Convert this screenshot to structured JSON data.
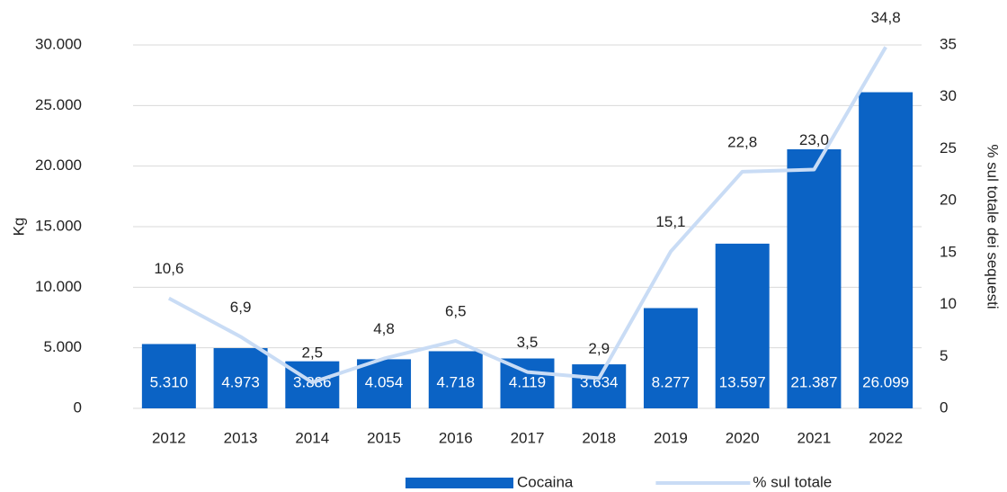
{
  "chart_data": {
    "type": "bar_line",
    "categories": [
      "2012",
      "2013",
      "2014",
      "2015",
      "2016",
      "2017",
      "2018",
      "2019",
      "2020",
      "2021",
      "2022"
    ],
    "series": [
      {
        "name": "Cocaina",
        "type": "bar",
        "color": "#0b63c5",
        "values": [
          5310,
          4973,
          3886,
          4054,
          4718,
          4119,
          3634,
          8277,
          13597,
          21387,
          26099
        ],
        "value_labels": [
          "5.310",
          "4.973",
          "3.886",
          "4.054",
          "4.718",
          "4.119",
          "3.634",
          "8.277",
          "13.597",
          "21.387",
          "26.099"
        ]
      },
      {
        "name": "% sul totale",
        "type": "line",
        "axis": "y2",
        "color": "#c9dcf5",
        "values": [
          10.6,
          6.9,
          2.5,
          4.8,
          6.5,
          3.5,
          2.9,
          15.1,
          22.8,
          23.0,
          34.8
        ],
        "value_labels": [
          "10,6",
          "6,9",
          "2,5",
          "4,8",
          "6,5",
          "3,5",
          "2,9",
          "15,1",
          "22,8",
          "23,0",
          "34,8"
        ]
      }
    ],
    "ylabel": "Kg",
    "y2label": "% sul totale dei sequesti",
    "ylim": [
      0,
      30000
    ],
    "yticks": [
      0,
      {
        "value": 5000,
        "label": "5.000"
      },
      {
        "value": 10000,
        "label": "10.000"
      },
      {
        "value": 15000,
        "label": "15.000"
      },
      {
        "value": 20000,
        "label": "20.000"
      },
      {
        "value": 25000,
        "label": "25.000"
      },
      {
        "value": 30000,
        "label": "30.000"
      }
    ],
    "y2lim": [
      0,
      35
    ],
    "y2ticks": [
      0,
      5,
      10,
      15,
      20,
      25,
      30,
      35
    ],
    "grid": true,
    "legend": "bottom"
  }
}
